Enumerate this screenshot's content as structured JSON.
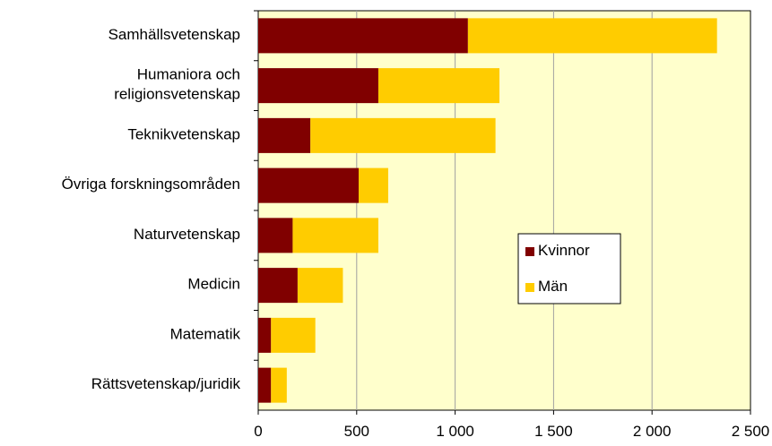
{
  "chart_data": {
    "type": "stacked_barh",
    "categories": [
      "Samhällsvetenskap",
      "Humaniora och\nreligionsvetenskap",
      "Teknikvetenskap",
      "Övriga forskningsområden",
      "Naturvetenskap",
      "Medicin",
      "Matematik",
      "Rättsvetenskap/juridik"
    ],
    "series": [
      {
        "name": "Kvinnor",
        "color": "#800000",
        "values": [
          1065,
          610,
          265,
          510,
          175,
          200,
          65,
          65
        ]
      },
      {
        "name": "Män",
        "color": "#ffcc00",
        "values": [
          1265,
          615,
          940,
          150,
          435,
          230,
          225,
          80
        ]
      }
    ],
    "xlim": [
      0,
      2500
    ],
    "xticks": [
      0,
      500,
      {
        "value": 1000,
        "label": "1 000"
      },
      {
        "value": 1500,
        "label": "1 500"
      },
      {
        "value": 2000,
        "label": "2 000"
      },
      {
        "value": 2500,
        "label": "2 500"
      }
    ],
    "grid": true,
    "legend": "center right",
    "plot_background": "#ffffcc"
  }
}
